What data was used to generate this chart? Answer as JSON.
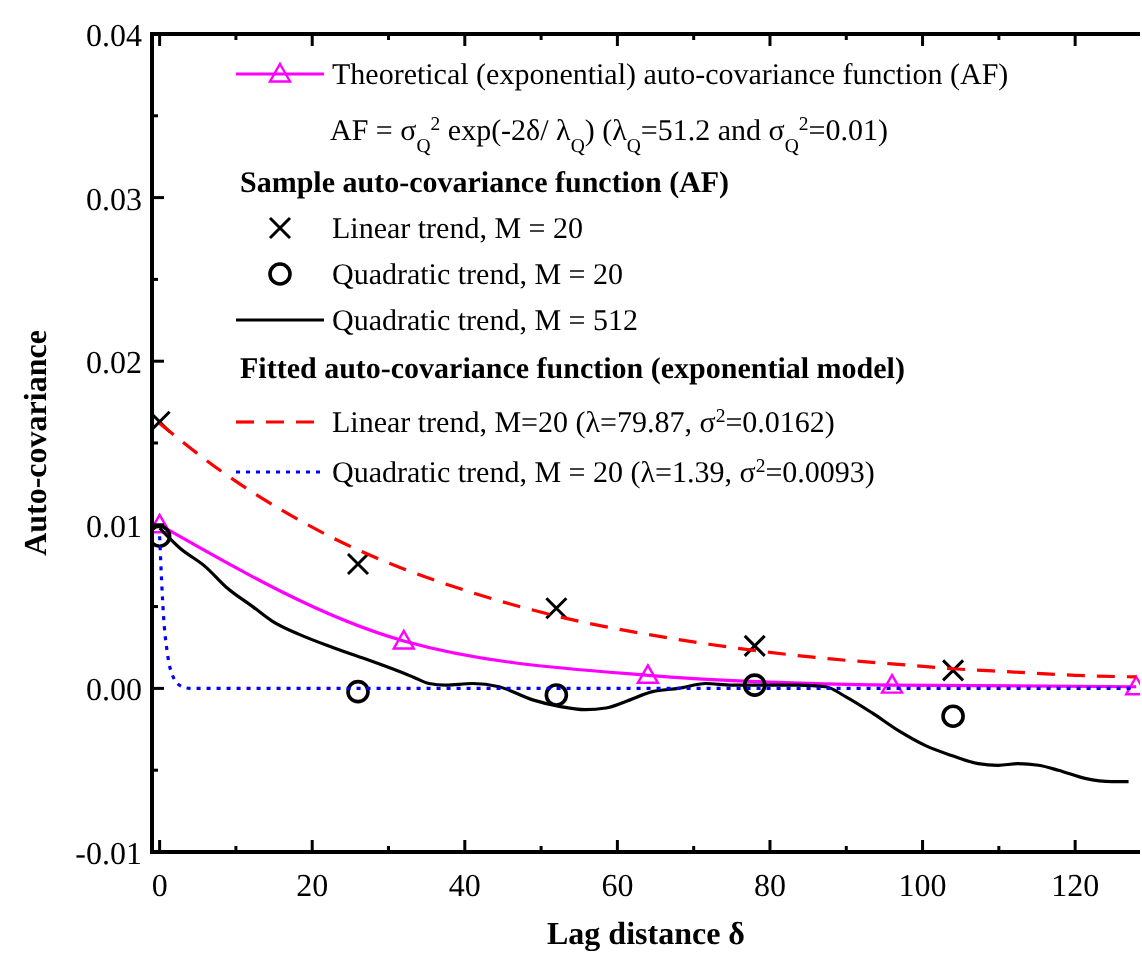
{
  "chart_data": {
    "type": "line",
    "xlabel": "Lag distance δ",
    "ylabel": "Auto-covariance",
    "xlim": [
      -1,
      128.5
    ],
    "ylim": [
      -0.01,
      0.04
    ],
    "xticks": [
      0,
      {
        "value": 10,
        "label": null
      },
      20,
      {
        "value": 30,
        "label": null
      },
      40,
      {
        "value": 50,
        "label": null
      },
      60,
      {
        "value": 70,
        "label": null
      },
      80,
      {
        "value": 90,
        "label": null
      },
      100,
      {
        "value": 110,
        "label": null
      },
      120
    ],
    "yticks": [
      {
        "value": -0.01,
        "label": "-0.01"
      },
      {
        "value": -0.005,
        "label": null
      },
      {
        "value": 0,
        "label": "0.00"
      },
      {
        "value": 0.005,
        "label": null
      },
      {
        "value": 0.01,
        "label": "0.01"
      },
      {
        "value": 0.015,
        "label": null
      },
      {
        "value": 0.02,
        "label": "0.02"
      },
      {
        "value": 0.025,
        "label": null
      },
      {
        "value": 0.03,
        "label": "0.03"
      },
      {
        "value": 0.035,
        "label": null
      },
      {
        "value": 0.04,
        "label": "0.04"
      }
    ],
    "legend": "top right",
    "annotations": [
      "AF = σ$_{Q}$$^{2}$ exp(-2δ/ λ$_{Q}$)  (λ$_{Q}$=51.2 and σ$_{Q}$$^{2}$=0.01)",
      "Sample auto-covariance function (AF)",
      "Fitted auto-covariance function (exponential model)"
    ],
    "series": [
      {
        "name": "Theoretical (exponential) auto-covariance function (AF)",
        "type": "line",
        "color": "#ff00ff",
        "marker": "triangle",
        "line_style": "solid",
        "x": [
          0,
          32,
          64,
          96,
          128
        ],
        "values": [
          0.01,
          0.0029,
          0.0008,
          0.0002,
          0.0001
        ]
      },
      {
        "name": "Linear trend, M = 20",
        "type": "scatter",
        "color": "#000000",
        "marker": "cross",
        "x": [
          0,
          26,
          52,
          78,
          104
        ],
        "values": [
          0.0163,
          0.0076,
          0.0049,
          0.0026,
          0.0011
        ]
      },
      {
        "name": "Quadratic trend, M = 20",
        "type": "scatter",
        "color": "#000000",
        "marker": "circle",
        "x": [
          0,
          26,
          52,
          78,
          104
        ],
        "values": [
          0.0093,
          -0.0002,
          -0.0004,
          0.0002,
          -0.0017
        ]
      },
      {
        "name": "Quadratic trend, M = 512",
        "type": "line",
        "color": "#000000",
        "marker": "none",
        "line_style": "solid",
        "x": [
          0,
          2.6,
          6.1,
          8.7,
          12.2,
          14.8,
          18.3,
          22.7,
          27,
          30.5,
          33.2,
          35.3,
          37.5,
          41,
          44.5,
          48.9,
          52.4,
          55.8,
          58.5,
          61.1,
          64.6,
          68,
          71.6,
          75,
          79.4,
          83.8,
          87.3,
          89.9,
          93.4,
          96.9,
          100.4,
          103.8,
          107.3,
          109.9,
          112.5,
          115.2,
          117.8,
          121.3,
          124.8,
          127
        ],
        "values": [
          0.0098,
          0.0086,
          0.0074,
          0.0062,
          0.005,
          0.0041,
          0.0033,
          0.0025,
          0.0018,
          0.0012,
          0.0007,
          0.0003,
          0.0002,
          0.0003,
          0.0001,
          -0.0007,
          -0.0011,
          -0.0013,
          -0.0012,
          -0.0008,
          -0.0002,
          0,
          0.0003,
          0.0002,
          0.0002,
          0.0002,
          0.0001,
          -0.0005,
          -0.0015,
          -0.0026,
          -0.0035,
          -0.0041,
          -0.0046,
          -0.0047,
          -0.0046,
          -0.0047,
          -0.005,
          -0.0055,
          -0.0057,
          -0.0057
        ]
      },
      {
        "name": "Linear trend, M=20 (λ=79.87, σ$^{2}$=0.0162)",
        "type": "line",
        "color": "#ff0000",
        "marker": "none",
        "line_style": "dashed",
        "x": [
          0,
          8,
          16,
          24,
          32,
          40,
          48,
          56,
          64,
          72,
          80,
          88,
          96,
          104,
          112,
          120,
          128
        ],
        "values": [
          0.0162,
          0.0133,
          0.0109,
          0.0089,
          0.0073,
          0.006,
          0.0049,
          0.004,
          0.0033,
          0.0027,
          0.0022,
          0.0018,
          0.0015,
          0.0012,
          0.001,
          0.0008,
          0.0007
        ]
      },
      {
        "name": "Quadratic trend, M = 20 (λ=1.39, σ$^{2}$=0.0093)",
        "type": "line",
        "color": "#0000ff",
        "marker": "none",
        "line_style": "dotted",
        "x": [
          0,
          0.5,
          1,
          2,
          3,
          4,
          10,
          128
        ],
        "values": [
          0.0093,
          0.0045,
          0.0022,
          0.0005,
          0.0001,
          0,
          0,
          0
        ]
      }
    ]
  }
}
